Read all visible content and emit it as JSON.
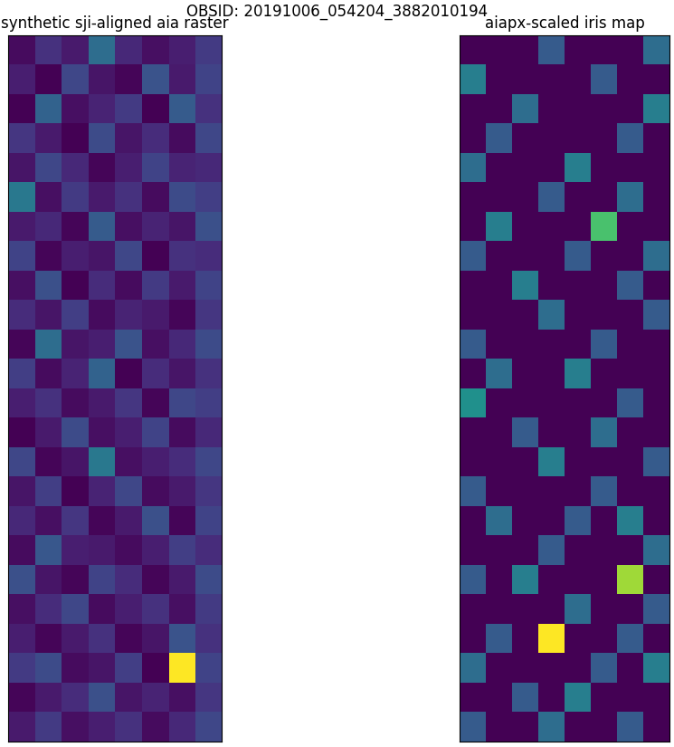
{
  "suptitle": "OBSID: 20191006_054204_3882010194",
  "chart_data": [
    {
      "type": "heatmap",
      "title": "synthetic sji-aligned aia raster",
      "tick_labels": false,
      "cells": [
        [
          0.32,
          0.4,
          0.35,
          0.55,
          0.38,
          0.33,
          0.36,
          0.42
        ],
        [
          0.36,
          0.3,
          0.45,
          0.34,
          0.31,
          0.48,
          0.35,
          0.44
        ],
        [
          0.3,
          0.52,
          0.33,
          0.37,
          0.42,
          0.3,
          0.5,
          0.4
        ],
        [
          0.41,
          0.35,
          0.3,
          0.46,
          0.34,
          0.39,
          0.32,
          0.45
        ],
        [
          0.34,
          0.45,
          0.38,
          0.31,
          0.36,
          0.44,
          0.37,
          0.38
        ],
        [
          0.58,
          0.33,
          0.42,
          0.35,
          0.4,
          0.32,
          0.46,
          0.43
        ],
        [
          0.35,
          0.38,
          0.31,
          0.5,
          0.33,
          0.37,
          0.34,
          0.47
        ],
        [
          0.44,
          0.31,
          0.36,
          0.34,
          0.45,
          0.3,
          0.4,
          0.39
        ],
        [
          0.33,
          0.47,
          0.3,
          0.39,
          0.32,
          0.42,
          0.35,
          0.44
        ],
        [
          0.39,
          0.34,
          0.43,
          0.32,
          0.37,
          0.35,
          0.31,
          0.41
        ],
        [
          0.31,
          0.55,
          0.34,
          0.36,
          0.48,
          0.33,
          0.38,
          0.46
        ],
        [
          0.43,
          0.32,
          0.37,
          0.52,
          0.3,
          0.39,
          0.34,
          0.4
        ],
        [
          0.36,
          0.4,
          0.32,
          0.35,
          0.41,
          0.31,
          0.45,
          0.43
        ],
        [
          0.3,
          0.35,
          0.46,
          0.33,
          0.36,
          0.44,
          0.32,
          0.38
        ],
        [
          0.45,
          0.31,
          0.34,
          0.58,
          0.33,
          0.36,
          0.39,
          0.45
        ],
        [
          0.34,
          0.43,
          0.3,
          0.37,
          0.45,
          0.32,
          0.35,
          0.41
        ],
        [
          0.38,
          0.33,
          0.41,
          0.31,
          0.35,
          0.47,
          0.31,
          0.44
        ],
        [
          0.32,
          0.49,
          0.36,
          0.35,
          0.32,
          0.36,
          0.43,
          0.39
        ],
        [
          0.47,
          0.34,
          0.31,
          0.44,
          0.39,
          0.31,
          0.35,
          0.46
        ],
        [
          0.33,
          0.39,
          0.45,
          0.32,
          0.36,
          0.4,
          0.33,
          0.42
        ],
        [
          0.36,
          0.31,
          0.35,
          0.4,
          0.31,
          0.34,
          0.48,
          0.4
        ],
        [
          0.42,
          0.46,
          0.32,
          0.34,
          0.43,
          0.3,
          1.0,
          0.44
        ],
        [
          0.31,
          0.35,
          0.39,
          0.47,
          0.34,
          0.37,
          0.33,
          0.41
        ],
        [
          0.35,
          0.42,
          0.33,
          0.36,
          0.4,
          0.32,
          0.38,
          0.45
        ]
      ]
    },
    {
      "type": "heatmap",
      "title": "aiapx-scaled iris map",
      "tick_labels": false,
      "cells": [
        [
          0,
          0,
          0,
          0.2,
          0,
          0,
          0,
          0.25
        ],
        [
          0.3,
          0,
          0,
          0,
          0,
          0.2,
          0,
          0
        ],
        [
          0,
          0,
          0.25,
          0,
          0,
          0,
          0,
          0.3
        ],
        [
          0,
          0.2,
          0,
          0,
          0,
          0,
          0.2,
          0
        ],
        [
          0.25,
          0,
          0,
          0,
          0.3,
          0,
          0,
          0
        ],
        [
          0,
          0,
          0,
          0.2,
          0,
          0,
          0.25,
          0
        ],
        [
          0,
          0.3,
          0,
          0,
          0,
          0.5,
          0,
          0
        ],
        [
          0.2,
          0,
          0,
          0,
          0.2,
          0,
          0,
          0.25
        ],
        [
          0,
          0,
          0.3,
          0,
          0,
          0,
          0.2,
          0
        ],
        [
          0,
          0,
          0,
          0.25,
          0,
          0,
          0,
          0.2
        ],
        [
          0.2,
          0,
          0,
          0,
          0,
          0.2,
          0,
          0
        ],
        [
          0,
          0.25,
          0,
          0,
          0.3,
          0,
          0,
          0
        ],
        [
          0.35,
          0,
          0,
          0,
          0,
          0,
          0.2,
          0
        ],
        [
          0,
          0,
          0.2,
          0,
          0,
          0.25,
          0,
          0
        ],
        [
          0,
          0,
          0,
          0.3,
          0,
          0,
          0,
          0.2
        ],
        [
          0.2,
          0,
          0,
          0,
          0,
          0.2,
          0,
          0
        ],
        [
          0,
          0.25,
          0,
          0,
          0.2,
          0,
          0.3,
          0
        ],
        [
          0,
          0,
          0,
          0.2,
          0,
          0,
          0,
          0.25
        ],
        [
          0.2,
          0,
          0.3,
          0,
          0,
          0,
          0.6,
          0
        ],
        [
          0,
          0,
          0,
          0,
          0.25,
          0,
          0,
          0.2
        ],
        [
          0,
          0.2,
          0,
          0.7,
          0,
          0,
          0.2,
          0
        ],
        [
          0.25,
          0,
          0,
          0,
          0,
          0.2,
          0,
          0.3
        ],
        [
          0,
          0,
          0.2,
          0,
          0.3,
          0,
          0,
          0
        ],
        [
          0.2,
          0,
          0,
          0.25,
          0,
          0,
          0.2,
          0
        ]
      ]
    }
  ]
}
